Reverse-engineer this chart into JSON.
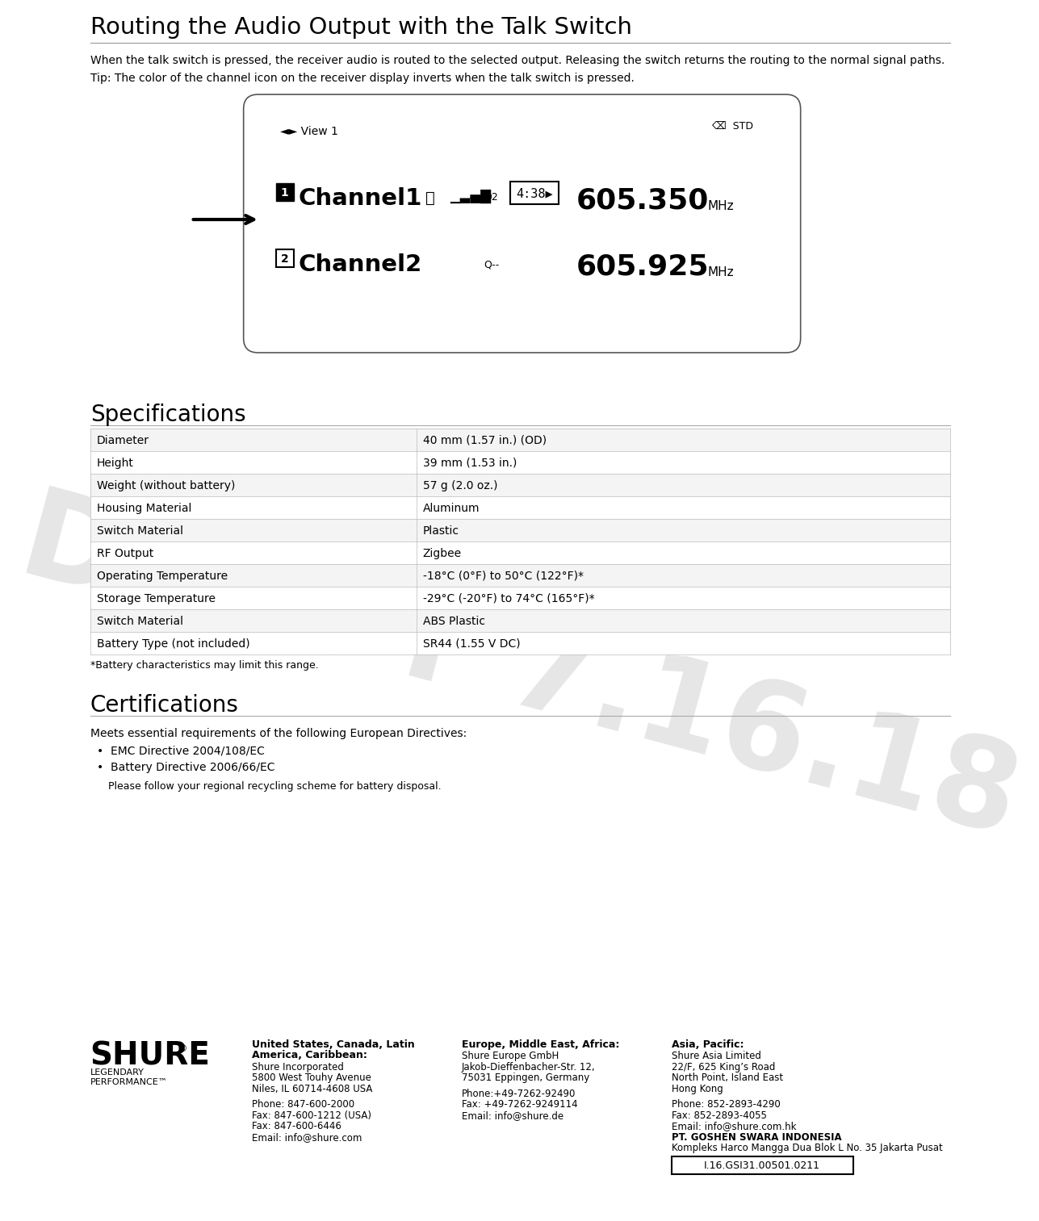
{
  "title": "Routing the Audio Output with the Talk Switch",
  "body_text": "When the talk switch is pressed, the receiver audio is routed to the selected output. Releasing the switch returns the routing to the normal signal paths.",
  "tip_text": "Tip: The color of the channel icon on the receiver display inverts when the talk switch is pressed.",
  "specs_title": "Specifications",
  "specs": [
    [
      "Diameter",
      "40 mm (1.57 in.) (OD)"
    ],
    [
      "Height",
      "39 mm (1.53 in.)"
    ],
    [
      "Weight (without battery)",
      "57 g (2.0 oz.)"
    ],
    [
      "Housing Material",
      "Aluminum"
    ],
    [
      "Switch Material",
      "Plastic"
    ],
    [
      "RF Output",
      "Zigbee"
    ],
    [
      "Operating Temperature",
      "-18°C (0°F) to 50°C (122°F)*"
    ],
    [
      "Storage Temperature",
      "-29°C (-20°F) to 74°C (165°F)*"
    ],
    [
      "Switch Material",
      "ABS Plastic"
    ],
    [
      "Battery Type (not included)",
      "SR44 (1.55 V DC)"
    ]
  ],
  "specs_footnote": "*Battery characteristics may limit this range.",
  "cert_title": "Certifications",
  "cert_text": "Meets essential requirements of the following European Directives:",
  "cert_bullets": [
    "EMC Directive 2004/108/EC",
    "Battery Directive 2006/66/EC"
  ],
  "cert_note": "Please follow your regional recycling scheme for battery disposal.",
  "footer_col1_title_line1": "United States, Canada, Latin",
  "footer_col1_title_line2": "America, Caribbean:",
  "footer_col1_lines": [
    "Shure Incorporated",
    "5800 West Touhy Avenue",
    "Niles, IL 60714-4608 USA",
    "",
    "Phone: 847-600-2000",
    "Fax: 847-600-1212 (USA)",
    "Fax: 847-600-6446",
    "Email: info@shure.com"
  ],
  "footer_col2_title": "Europe, Middle East, Africa:",
  "footer_col2_lines": [
    "Shure Europe GmbH",
    "Jakob-Dieffenbacher-Str. 12,",
    "75031 Eppingen, Germany",
    "",
    "Phone:+49-7262-92490",
    "Fax: +49-7262-9249114",
    "Email: info@shure.de"
  ],
  "footer_col3_title": "Asia, Pacific:",
  "footer_col3_lines": [
    "Shure Asia Limited",
    "22/F, 625 King’s Road",
    "North Point, Island East",
    "Hong Kong",
    "",
    "Phone: 852-2893-4290",
    "Fax: 852-2893-4055",
    "Email: info@shure.com.hk",
    "PT. GOSHEN SWARA INDONESIA",
    "Kompleks Harco Mangga Dua Blok L No. 35 Jakarta Pusat"
  ],
  "footer_id": "I.16.GSI31.00501.0211",
  "draft_text": "DRAFT 7.16.18",
  "bg_color": "#ffffff",
  "text_color": "#000000",
  "draft_color": "#c8c8c8"
}
